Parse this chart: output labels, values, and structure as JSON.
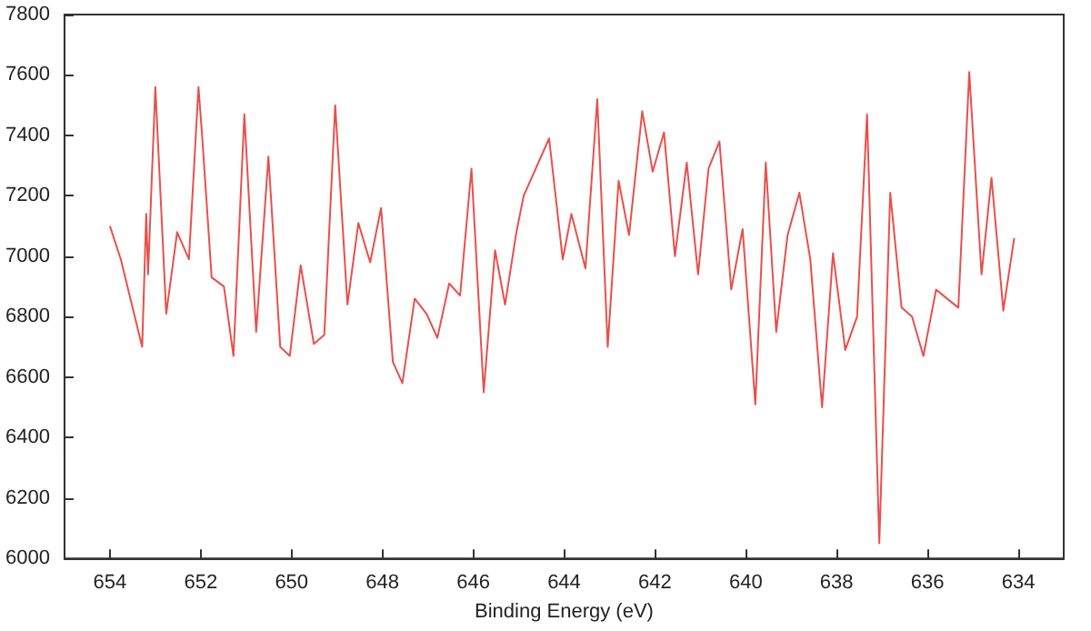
{
  "chart_data": {
    "type": "line",
    "xlabel": "Binding Energy (eV)",
    "x": [
      654,
      653.76,
      653.29,
      653.2,
      653.16,
      653.0,
      652.76,
      652.52,
      652.26,
      652.05,
      651.97,
      651.76,
      651.49,
      651.28,
      651.04,
      650.78,
      650.51,
      650.25,
      650.04,
      649.8,
      649.51,
      649.28,
      649.04,
      648.77,
      648.53,
      648.27,
      648.03,
      647.77,
      647.56,
      647.29,
      647.03,
      646.79,
      646.53,
      646.29,
      646.04,
      645.77,
      645.52,
      645.3,
      645.05,
      644.89,
      644.33,
      644.03,
      643.84,
      643.53,
      643.27,
      643.04,
      642.8,
      642.57,
      642.28,
      642.05,
      641.8,
      641.56,
      641.3,
      641.05,
      640.82,
      640.58,
      640.32,
      640.07,
      639.79,
      639.56,
      639.33,
      639.08,
      638.82,
      638.58,
      638.32,
      638.08,
      637.81,
      637.55,
      637.33,
      637.06,
      636.82,
      636.57,
      636.34,
      636.09,
      635.81,
      635.57,
      635.32,
      635.08,
      634.81,
      634.59,
      634.33,
      634.09
    ],
    "series": [
      {
        "color": "#e8504c",
        "values": [
          7100,
          6990,
          6700,
          7140,
          6940,
          7560,
          6810,
          7080,
          6990,
          7560,
          7400,
          6930,
          6900,
          6670,
          7470,
          6750,
          7330,
          6700,
          6670,
          6970,
          6710,
          6740,
          7500,
          6840,
          7110,
          6980,
          7160,
          6650,
          6580,
          6860,
          6810,
          6730,
          6910,
          6870,
          7290,
          6550,
          7020,
          6840,
          7080,
          7200,
          7390,
          6990,
          7140,
          6960,
          7520,
          6700,
          7250,
          7070,
          7480,
          7280,
          7410,
          7000,
          7310,
          6940,
          7290,
          7380,
          6890,
          7090,
          6510,
          7310,
          6750,
          7070,
          7210,
          6990,
          6500,
          7010,
          6690,
          6800,
          7470,
          6050,
          7210,
          6830,
          6800,
          6670,
          6890,
          6860,
          6830,
          7610,
          6940,
          7260,
          6820,
          7060
        ]
      }
    ],
    "xlim": [
      655,
      633
    ],
    "xticks": [
      654,
      652,
      650,
      648,
      646,
      644,
      642,
      640,
      638,
      636,
      634
    ],
    "ylim": [
      6000,
      7800
    ],
    "yticks": [
      6000,
      6200,
      6400,
      6600,
      6800,
      7000,
      7200,
      7400,
      7600,
      7800
    ],
    "grid": false,
    "marker": "none",
    "line_style": "solid"
  }
}
